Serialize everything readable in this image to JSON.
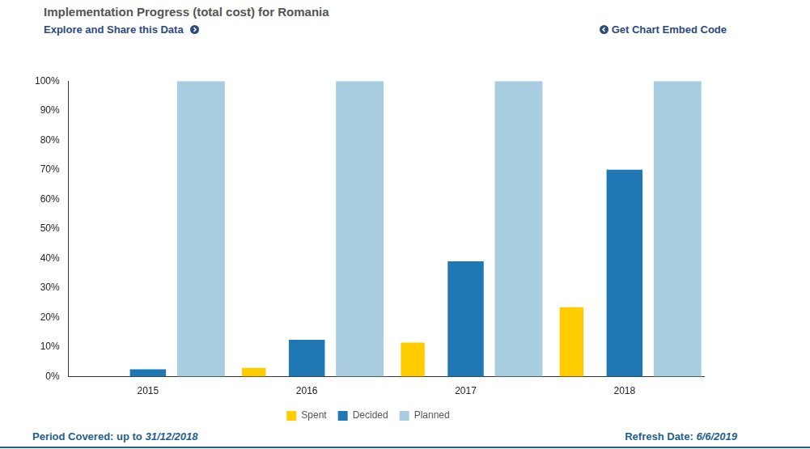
{
  "chart_data": {
    "type": "bar",
    "title": "Implementation Progress (total cost) for Romania",
    "categories": [
      "2015",
      "2016",
      "2017",
      "2018"
    ],
    "series": [
      {
        "name": "Planned",
        "color": "#a8cde1",
        "values": [
          100,
          100,
          100,
          100
        ]
      },
      {
        "name": "Decided",
        "color": "#1f77b4",
        "values": [
          2.5,
          12.5,
          39,
          70
        ]
      },
      {
        "name": "Spent",
        "color": "#ffcc00",
        "values": [
          0,
          3,
          11.5,
          23.5
        ]
      }
    ],
    "ylim": [
      0,
      100
    ],
    "yticks": [
      {
        "value": 0,
        "label": "0%"
      },
      {
        "value": 10,
        "label": "10%"
      },
      {
        "value": 20,
        "label": "20%"
      },
      {
        "value": 30,
        "label": "30%"
      },
      {
        "value": 40,
        "label": "40%"
      },
      {
        "value": 50,
        "label": "50%"
      },
      {
        "value": 60,
        "label": "60%"
      },
      {
        "value": 70,
        "label": "70%"
      },
      {
        "value": 80,
        "label": "80%"
      },
      {
        "value": 90,
        "label": "90%"
      },
      {
        "value": 100,
        "label": "100%"
      }
    ],
    "grid": false,
    "legend": "bottom"
  },
  "page": {
    "explore_link": "Explore and Share this Data",
    "embed_link": "Get Chart Embed Code",
    "period_label": "Period Covered: up to",
    "period_date": "31/12/2018",
    "refresh_label": "Refresh Date:",
    "refresh_date": "6/6/2019"
  }
}
